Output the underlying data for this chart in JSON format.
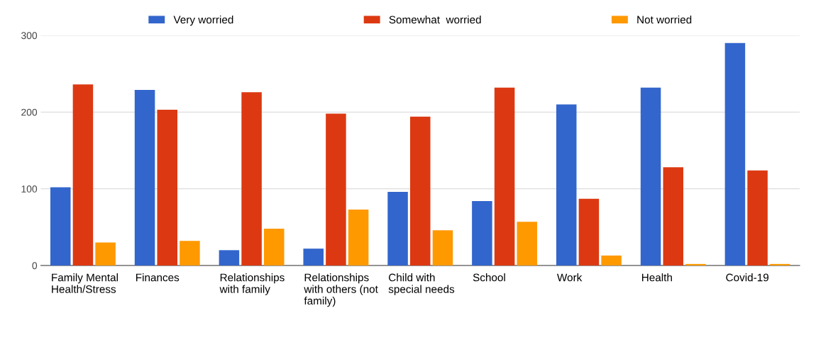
{
  "chart_data": {
    "type": "bar",
    "categories": [
      "Family Mental\nHealth/Stress",
      "Finances",
      "Relationships\nwith family",
      "Relationships\nwith others (not\nfamily)",
      "Child with\nspecial needs",
      "School",
      "Work",
      "Health",
      "Covid-19"
    ],
    "series": [
      {
        "name": "Very worried",
        "color": "#3366cc",
        "values": [
          102,
          229,
          20,
          22,
          96,
          84,
          210,
          232,
          290
        ]
      },
      {
        "name": "Somewhat  worried",
        "color": "#dc3912",
        "values": [
          236,
          203,
          226,
          198,
          194,
          232,
          87,
          128,
          124
        ]
      },
      {
        "name": "Not worried",
        "color": "#ff9900",
        "values": [
          30,
          32,
          48,
          73,
          46,
          57,
          13,
          2,
          2
        ]
      }
    ],
    "ylim": [
      0,
      300
    ],
    "yticks": [
      0,
      100,
      200,
      300
    ],
    "grid": "y",
    "legend": "top"
  }
}
